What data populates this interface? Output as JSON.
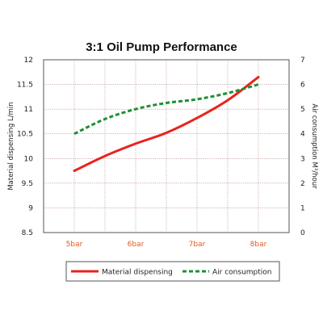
{
  "chart_data": {
    "type": "line",
    "title": "3:1 Oil Pump Performance",
    "x_categories": [
      "5bar",
      "6bar",
      "7bar",
      "8bar"
    ],
    "y_left": {
      "label": "Material dispensing L/min",
      "range": [
        8.5,
        12
      ],
      "ticks": [
        "8.5",
        "9",
        "9.5",
        "10",
        "10.5",
        "11",
        "11.5",
        "12"
      ]
    },
    "y_right": {
      "label": "Air consumption M³/hour",
      "range": [
        0,
        7
      ],
      "ticks": [
        "0",
        "1",
        "2",
        "3",
        "4",
        "5",
        "6",
        "7"
      ]
    },
    "grid": true,
    "legend_position": "bottom",
    "series": [
      {
        "name": "Material dispensing",
        "axis": "left",
        "color": "#e8231e",
        "style": "solid",
        "points": [
          [
            5,
            9.75
          ],
          [
            5.5,
            10.05
          ],
          [
            6,
            10.3
          ],
          [
            6.5,
            10.52
          ],
          [
            7,
            10.82
          ],
          [
            7.5,
            11.18
          ],
          [
            8,
            11.65
          ]
        ]
      },
      {
        "name": "Air consumption",
        "axis": "right",
        "color": "#1f8f35",
        "style": "dashed",
        "points": [
          [
            5,
            4.0
          ],
          [
            5.5,
            4.6
          ],
          [
            6,
            5.0
          ],
          [
            6.5,
            5.25
          ],
          [
            7,
            5.4
          ],
          [
            7.5,
            5.65
          ],
          [
            8,
            6.0
          ]
        ]
      }
    ]
  }
}
